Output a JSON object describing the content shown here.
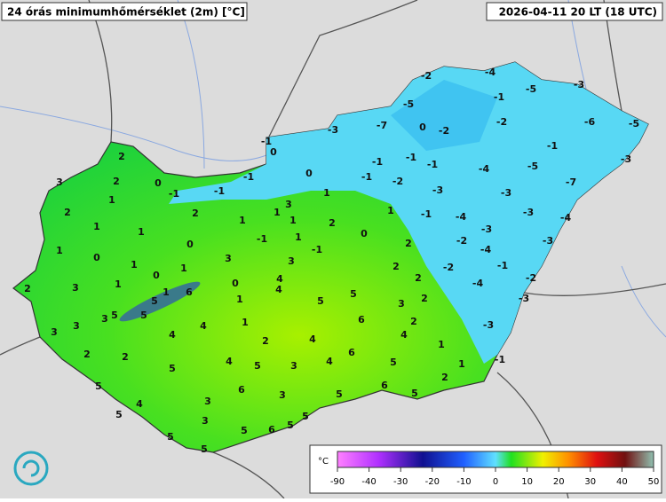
{
  "header": {
    "title": "24 órás minimumhőmérséklet (2m) [°C]",
    "timestamp": "2026-04-11 20 LT (18 UTC)"
  },
  "stations": {
    "values": [
      -2,
      -4,
      -5,
      -3,
      -1,
      -5,
      -3,
      -7,
      0,
      -2,
      -2,
      -6,
      -5,
      -1,
      -5,
      -3,
      -4,
      -7,
      -1,
      0,
      -1,
      -1,
      -1,
      -1,
      -2,
      -3,
      -3,
      -3,
      -4,
      -1,
      -4,
      -3,
      -3,
      -2,
      -4,
      -1,
      -2,
      -2,
      -4,
      -3,
      -3,
      -1,
      2,
      2,
      0,
      -1,
      -1,
      -1,
      0,
      3,
      1,
      1,
      2,
      1,
      2,
      1,
      1,
      3,
      1,
      2,
      1,
      1,
      -1,
      1,
      -1,
      0,
      2,
      1,
      0,
      0,
      3,
      1,
      3,
      2,
      0,
      1,
      1,
      0,
      3,
      2,
      4,
      2,
      1,
      6,
      5,
      4,
      1,
      5,
      5,
      3,
      2,
      3,
      5,
      5,
      3,
      4,
      1,
      6,
      2,
      3,
      4,
      4,
      4,
      2,
      1,
      2,
      2,
      6,
      4,
      5,
      3,
      4,
      5,
      1,
      5,
      5,
      6,
      3,
      6,
      2,
      3,
      5,
      5,
      4,
      5,
      5,
      3,
      5,
      6,
      5,
      5,
      5
    ]
  },
  "legend": {
    "unit": "°C",
    "ticks": [
      -90,
      -40,
      -30,
      -20,
      -10,
      0,
      10,
      20,
      30,
      40,
      50
    ]
  }
}
